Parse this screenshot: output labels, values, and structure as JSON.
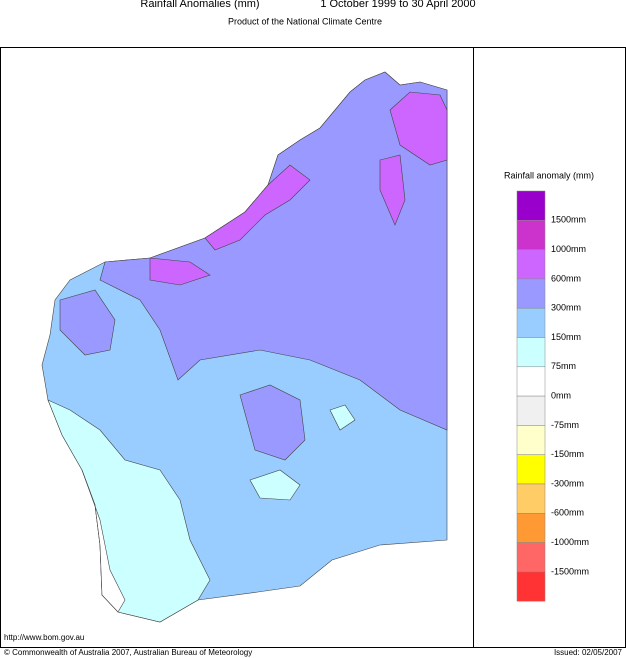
{
  "header": {
    "title": "Rainfall Anomalies (mm)",
    "period": "1 October 1999 to 30 April 2000",
    "subtitle": "Product of the National Climate Centre"
  },
  "legend": {
    "title": "Rainfall anomaly (mm)",
    "colors": [
      "#9900cc",
      "#cc33cc",
      "#cc66ff",
      "#9999ff",
      "#99ccff",
      "#ccffff",
      "#ffffff",
      "#f0f0f0",
      "#ffffcc",
      "#ffff00",
      "#ffcc66",
      "#ff9933",
      "#ff6666",
      "#ff3333"
    ],
    "labels": [
      "1500mm",
      "1000mm",
      "600mm",
      "300mm",
      "150mm",
      "75mm",
      "0mm",
      "-75mm",
      "-150mm",
      "-300mm",
      "-600mm",
      "-1000mm",
      "-1500mm"
    ]
  },
  "footer": {
    "url": "http://www.bom.gov.au",
    "copyright": "© Commonwealth of Australia 2007, Australian Bureau of Meteorology",
    "issued": "Issued: 02/05/2007"
  }
}
